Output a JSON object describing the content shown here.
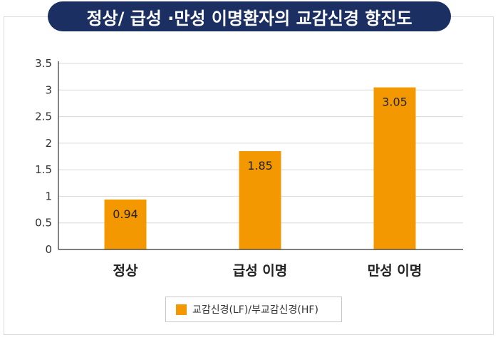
{
  "chart_data": {
    "type": "bar",
    "title": "정상/ 급성 ·만성 이명환자의 교감신경 항진도",
    "categories": [
      "정상",
      "급성 이명",
      "만성 이명"
    ],
    "series": [
      {
        "name": "교감신경(LF)/부교감신경(HF)",
        "values": [
          0.94,
          1.85,
          3.05
        ]
      }
    ],
    "data_labels": [
      "0.94",
      "1.85",
      "3.05"
    ],
    "yticks": [
      "0",
      "0.5",
      "1",
      "1.5",
      "2",
      "2.5",
      "3",
      "3.5"
    ],
    "ytick_values": [
      0,
      0.5,
      1,
      1.5,
      2,
      2.5,
      3,
      3.5
    ],
    "ylim": [
      0,
      3.5
    ],
    "grid": true,
    "legend_position": "bottom-center"
  },
  "colors": {
    "title_background": "#1c2f63",
    "bar": "#f39800",
    "grid": "#d9d9d9",
    "axis": "#333333"
  }
}
